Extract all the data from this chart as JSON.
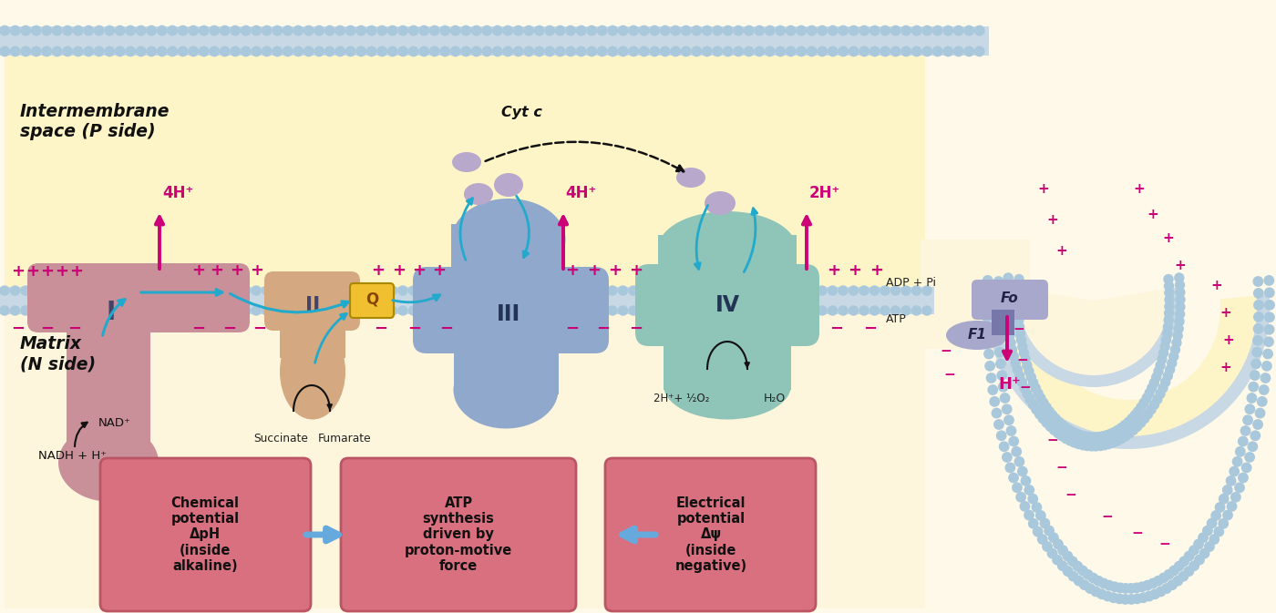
{
  "bg_outer": "#fef9e8",
  "bg_intermembrane": "#fdf5c8",
  "bg_matrix": "#fdf5dc",
  "head_color": "#aac8dc",
  "tail_color": "#c8d8e4",
  "complex_I_color": "#c9909a",
  "complex_II_color": "#d4a880",
  "complex_III_color": "#8fa8cc",
  "complex_IV_color": "#8fc4b8",
  "atp_color": "#a8a8cc",
  "cytc_color": "#b8a8cc",
  "cyan": "#22aacc",
  "magenta": "#cc0077",
  "black": "#111111",
  "plus_color": "#cc0077",
  "minus_color": "#cc0077",
  "box_fill": "#d87080",
  "box_edge": "#bb5566",
  "arrow_blue": "#66aadd",
  "intermembrane_label": "Intermembrane\nspace (P side)",
  "matrix_label": "Matrix\n(N side)",
  "lbl_I": "I",
  "lbl_II": "II",
  "lbl_III": "III",
  "lbl_IV": "IV",
  "lbl_Q": "Q",
  "lbl_Fo": "Fo",
  "lbl_F1": "F1",
  "cytc_lbl": "Cyt c",
  "nadh": "NADH + H⁺",
  "nad": "NAD⁺",
  "succinate": "Succinate",
  "fumarate": "Fumarate",
  "h4_lbl": "4H⁺",
  "h2_lbl": "2H⁺",
  "o2_lbl": "2H⁺+ ½O₂",
  "h2o_lbl": "H₂O",
  "adp_lbl": "ADP + Pi",
  "atp_lbl": "ATP",
  "hplus_lbl": "H⁺",
  "box1": "Chemical\npotential\nΔpH\n(inside\nalkaline)",
  "box2": "ATP\nsynthesis\ndriven by\nproton-motive\nforce",
  "box3": "Electrical\npotential\nΔψ\n(inside\nnegative)"
}
